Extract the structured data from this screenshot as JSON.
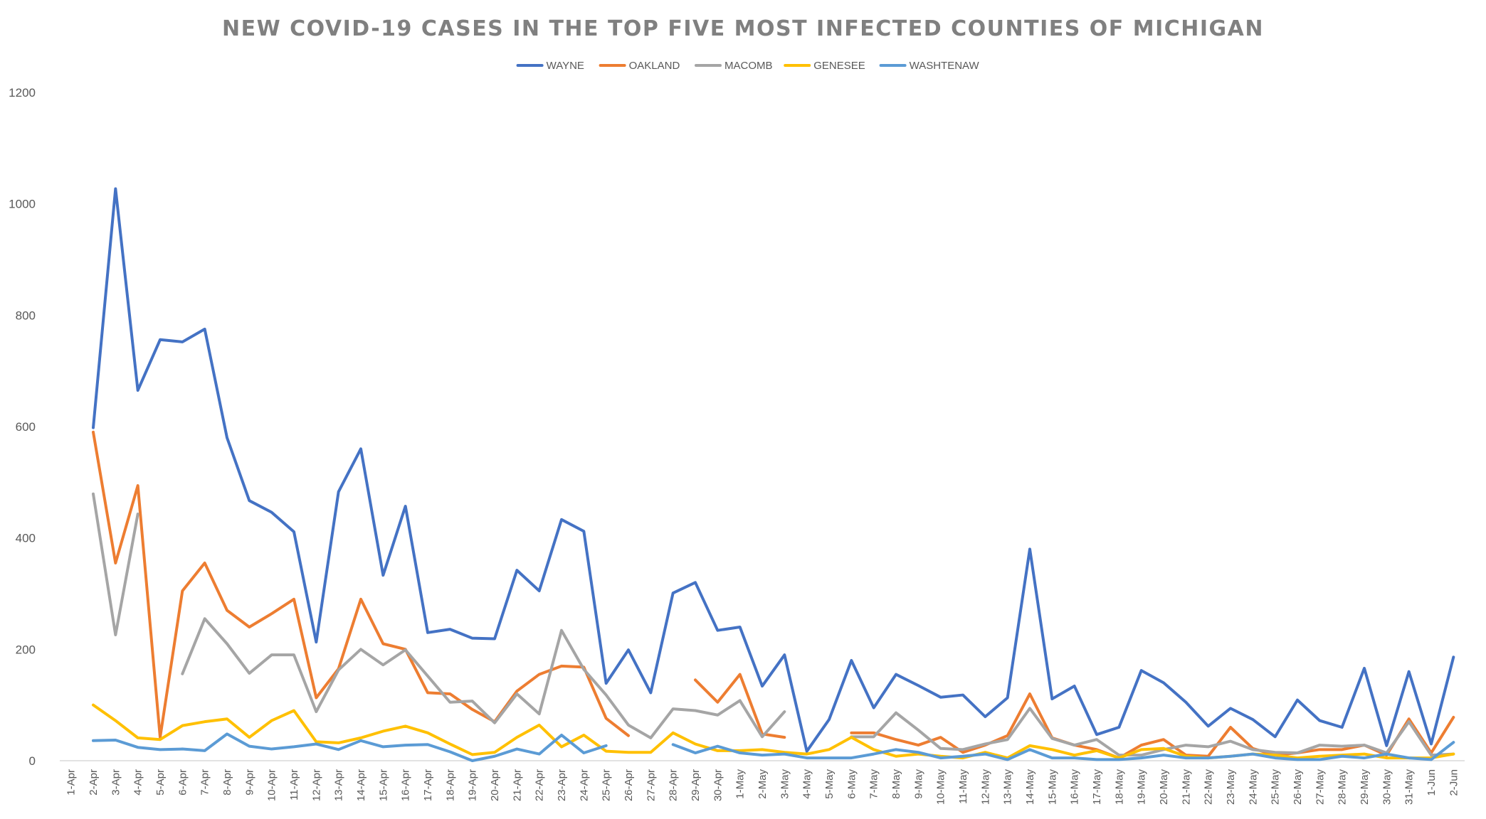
{
  "chart_data": {
    "type": "line",
    "title": "NEW COVID-19 CASES IN THE TOP FIVE MOST INFECTED COUNTIES OF MICHIGAN",
    "xlabel": "",
    "ylabel": "",
    "ylim": [
      0,
      1200
    ],
    "yticks": [
      0,
      200,
      400,
      600,
      800,
      1000,
      1200
    ],
    "grid": false,
    "legend_position": "top",
    "categories": [
      "1-Apr",
      "2-Apr",
      "3-Apr",
      "4-Apr",
      "5-Apr",
      "6-Apr",
      "7-Apr",
      "8-Apr",
      "9-Apr",
      "10-Apr",
      "11-Apr",
      "12-Apr",
      "13-Apr",
      "14-Apr",
      "15-Apr",
      "16-Apr",
      "17-Apr",
      "18-Apr",
      "19-Apr",
      "20-Apr",
      "21-Apr",
      "22-Apr",
      "23-Apr",
      "24-Apr",
      "25-Apr",
      "26-Apr",
      "27-Apr",
      "28-Apr",
      "29-Apr",
      "30-Apr",
      "1-May",
      "2-May",
      "3-May",
      "4-May",
      "5-May",
      "6-May",
      "7-May",
      "8-May",
      "9-May",
      "10-May",
      "11-May",
      "12-May",
      "13-May",
      "14-May",
      "15-May",
      "16-May",
      "17-May",
      "18-May",
      "19-May",
      "20-May",
      "21-May",
      "22-May",
      "23-May",
      "24-May",
      "25-May",
      "26-May",
      "27-May",
      "28-May",
      "29-May",
      "30-May",
      "31-May",
      "1-Jun",
      "2-Jun"
    ],
    "series": [
      {
        "name": "WAYNE",
        "color": "#4472C4",
        "values": [
          null,
          598,
          1027,
          665,
          756,
          752,
          775,
          580,
          467,
          446,
          411,
          213,
          483,
          560,
          333,
          457,
          230,
          236,
          220,
          219,
          342,
          305,
          433,
          412,
          139,
          199,
          122,
          301,
          320,
          234,
          240,
          134,
          190,
          17,
          74,
          180,
          95,
          155,
          135,
          114,
          118,
          79,
          113,
          380,
          111,
          134,
          47,
          60,
          162,
          140,
          105,
          62,
          94,
          74,
          43,
          109,
          72,
          60,
          166,
          27,
          160,
          30,
          186
        ]
      },
      {
        "name": "OAKLAND",
        "color": "#ED7D31",
        "values": [
          null,
          590,
          355,
          494,
          42,
          305,
          355,
          270,
          240,
          264,
          290,
          113,
          165,
          290,
          210,
          200,
          122,
          120,
          92,
          70,
          125,
          155,
          170,
          168,
          76,
          45,
          null,
          null,
          145,
          105,
          155,
          48,
          42,
          null,
          null,
          50,
          50,
          38,
          28,
          42,
          15,
          28,
          45,
          120,
          41,
          28,
          20,
          5,
          28,
          38,
          10,
          8,
          60,
          22,
          10,
          14,
          20,
          20,
          28,
          10,
          75,
          14,
          78
        ]
      },
      {
        "name": "MACOMB",
        "color": "#A5A5A5",
        "values": [
          null,
          479,
          226,
          443,
          null,
          156,
          255,
          210,
          157,
          190,
          190,
          88,
          163,
          200,
          172,
          199,
          152,
          105,
          107,
          68,
          120,
          84,
          234,
          164,
          118,
          64,
          41,
          93,
          90,
          82,
          108,
          43,
          88,
          null,
          null,
          43,
          43,
          86,
          55,
          22,
          20,
          30,
          38,
          94,
          40,
          28,
          38,
          10,
          10,
          20,
          28,
          25,
          35,
          20,
          15,
          14,
          28,
          26,
          28,
          14,
          70,
          10,
          12
        ]
      },
      {
        "name": "GENESEE",
        "color": "#FFC000",
        "values": [
          null,
          100,
          72,
          41,
          38,
          63,
          70,
          75,
          42,
          72,
          90,
          34,
          32,
          41,
          53,
          62,
          50,
          30,
          11,
          15,
          42,
          64,
          25,
          46,
          17,
          15,
          15,
          50,
          30,
          18,
          18,
          20,
          15,
          12,
          20,
          42,
          20,
          8,
          12,
          8,
          5,
          15,
          5,
          27,
          20,
          10,
          18,
          5,
          20,
          22,
          8,
          5,
          8,
          12,
          10,
          5,
          8,
          10,
          12,
          5,
          5,
          5,
          12
        ]
      },
      {
        "name": "WASHTENAW",
        "color": "#5B9BD5",
        "values": [
          null,
          36,
          37,
          24,
          20,
          21,
          18,
          48,
          26,
          21,
          25,
          30,
          20,
          36,
          25,
          28,
          29,
          16,
          0,
          8,
          21,
          12,
          46,
          14,
          27,
          null,
          null,
          29,
          14,
          26,
          14,
          10,
          12,
          5,
          5,
          5,
          12,
          20,
          15,
          5,
          8,
          12,
          2,
          20,
          5,
          5,
          2,
          2,
          5,
          10,
          5,
          5,
          8,
          12,
          5,
          2,
          2,
          8,
          5,
          12,
          5,
          2,
          33
        ]
      }
    ]
  }
}
